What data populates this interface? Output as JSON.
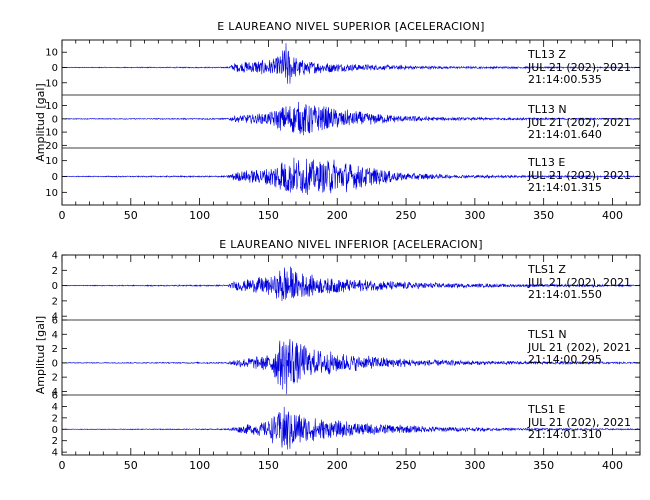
{
  "chart_data": [
    {
      "type": "line",
      "title": "E LAUREANO NIVEL SUPERIOR [ACELERACION]",
      "xlabel": "",
      "ylabel": "Amplitud [gal]",
      "xlim": [
        0,
        420
      ],
      "x_ticks": [
        0,
        50,
        100,
        150,
        200,
        250,
        300,
        350,
        400
      ],
      "grid": false,
      "line_color": "#0000dd",
      "series": [
        {
          "name": "TL13 Z",
          "label_lines": [
            "TL13   Z",
            "JUL  21  (202),  2021",
            "21:14:00.535"
          ],
          "ylim": [
            -18,
            18
          ],
          "y_tick_labels": [
            "10",
            "0",
            "10"
          ],
          "y_ticks": [
            10,
            0,
            -10
          ],
          "envelope": [
            [
              0,
              0.25
            ],
            [
              120,
              0.4
            ],
            [
              125,
              3
            ],
            [
              140,
              5
            ],
            [
              155,
              6
            ],
            [
              160,
              12
            ],
            [
              163,
              17
            ],
            [
              168,
              8
            ],
            [
              180,
              4.5
            ],
            [
              200,
              3
            ],
            [
              230,
              1.8
            ],
            [
              280,
              0.8
            ],
            [
              420,
              0.35
            ]
          ]
        },
        {
          "name": "TL13 N",
          "label_lines": [
            "TL13   N",
            "JUL  21  (202),  2021",
            "21:14:01.640"
          ],
          "ylim": [
            -22,
            18
          ],
          "y_tick_labels": [
            "10",
            "0",
            "10",
            "20"
          ],
          "y_ticks": [
            10,
            0,
            -10,
            -20
          ],
          "envelope": [
            [
              0,
              0.3
            ],
            [
              120,
              0.5
            ],
            [
              125,
              2.5
            ],
            [
              150,
              5
            ],
            [
              160,
              10
            ],
            [
              170,
              13
            ],
            [
              180,
              14
            ],
            [
              195,
              9
            ],
            [
              215,
              6
            ],
            [
              240,
              3
            ],
            [
              280,
              1.2
            ],
            [
              420,
              0.4
            ]
          ]
        },
        {
          "name": "TL13 E",
          "label_lines": [
            "TL13   E",
            "JUL  21  (202),  2021",
            "21:14:01.315"
          ],
          "ylim": [
            -18,
            18
          ],
          "y_tick_labels": [
            "10",
            "0",
            "10"
          ],
          "y_ticks": [
            10,
            0,
            -10
          ],
          "envelope": [
            [
              0,
              0.3
            ],
            [
              120,
              0.5
            ],
            [
              125,
              3
            ],
            [
              150,
              6
            ],
            [
              160,
              12
            ],
            [
              170,
              13
            ],
            [
              185,
              11
            ],
            [
              200,
              12
            ],
            [
              215,
              8
            ],
            [
              235,
              5
            ],
            [
              250,
              2.5
            ],
            [
              290,
              1
            ],
            [
              420,
              0.4
            ]
          ]
        }
      ]
    },
    {
      "type": "line",
      "title": "E LAUREANO NIVEL INFERIOR [ACELERACION]",
      "xlabel": "",
      "ylabel": "Amplitud [gal]",
      "xlim": [
        0,
        420
      ],
      "x_ticks": [
        0,
        50,
        100,
        150,
        200,
        250,
        300,
        350,
        400
      ],
      "grid": false,
      "line_color": "#0000dd",
      "series": [
        {
          "name": "TLS1 Z",
          "label_lines": [
            "TLS1   Z",
            "JUL  21  (202),  2021",
            "21:14:01.550"
          ],
          "ylim": [
            -4.5,
            4
          ],
          "y_tick_labels": [
            "4",
            "2",
            "0",
            "2",
            "4"
          ],
          "y_ticks": [
            4,
            2,
            0,
            -2,
            -4
          ],
          "envelope": [
            [
              0,
              0.05
            ],
            [
              120,
              0.1
            ],
            [
              125,
              0.6
            ],
            [
              140,
              1
            ],
            [
              155,
              1.5
            ],
            [
              162,
              3.2
            ],
            [
              170,
              2
            ],
            [
              185,
              1.3
            ],
            [
              210,
              0.9
            ],
            [
              250,
              0.5
            ],
            [
              300,
              0.25
            ],
            [
              420,
              0.1
            ]
          ]
        },
        {
          "name": "TLS1 N",
          "label_lines": [
            "TLS1   N",
            "JUL  21  (202),  2021",
            "21:14:00.295"
          ],
          "ylim": [
            -4.5,
            6
          ],
          "y_tick_labels": [
            "6",
            "4",
            "2",
            "0",
            "2",
            "4"
          ],
          "y_ticks": [
            6,
            4,
            2,
            0,
            -2,
            -4
          ],
          "envelope": [
            [
              0,
              0.05
            ],
            [
              120,
              0.1
            ],
            [
              125,
              0.5
            ],
            [
              150,
              1.2
            ],
            [
              160,
              4
            ],
            [
              165,
              5
            ],
            [
              172,
              3
            ],
            [
              185,
              2
            ],
            [
              210,
              1.2
            ],
            [
              250,
              0.6
            ],
            [
              300,
              0.3
            ],
            [
              420,
              0.1
            ]
          ]
        },
        {
          "name": "TLS1 E",
          "label_lines": [
            "TLS1   E",
            "JUL  21  (202),  2021",
            "21:14:01.310"
          ],
          "ylim": [
            -4.5,
            6
          ],
          "y_tick_labels": [
            "6",
            "4",
            "2",
            "0",
            "2",
            "4"
          ],
          "y_ticks": [
            6,
            4,
            2,
            0,
            -2,
            -4
          ],
          "envelope": [
            [
              0,
              0.05
            ],
            [
              120,
              0.1
            ],
            [
              125,
              0.5
            ],
            [
              150,
              1.5
            ],
            [
              158,
              4
            ],
            [
              162,
              5
            ],
            [
              168,
              3.5
            ],
            [
              180,
              2.3
            ],
            [
              200,
              1.6
            ],
            [
              230,
              1
            ],
            [
              270,
              0.5
            ],
            [
              320,
              0.25
            ],
            [
              420,
              0.1
            ]
          ]
        }
      ]
    }
  ]
}
